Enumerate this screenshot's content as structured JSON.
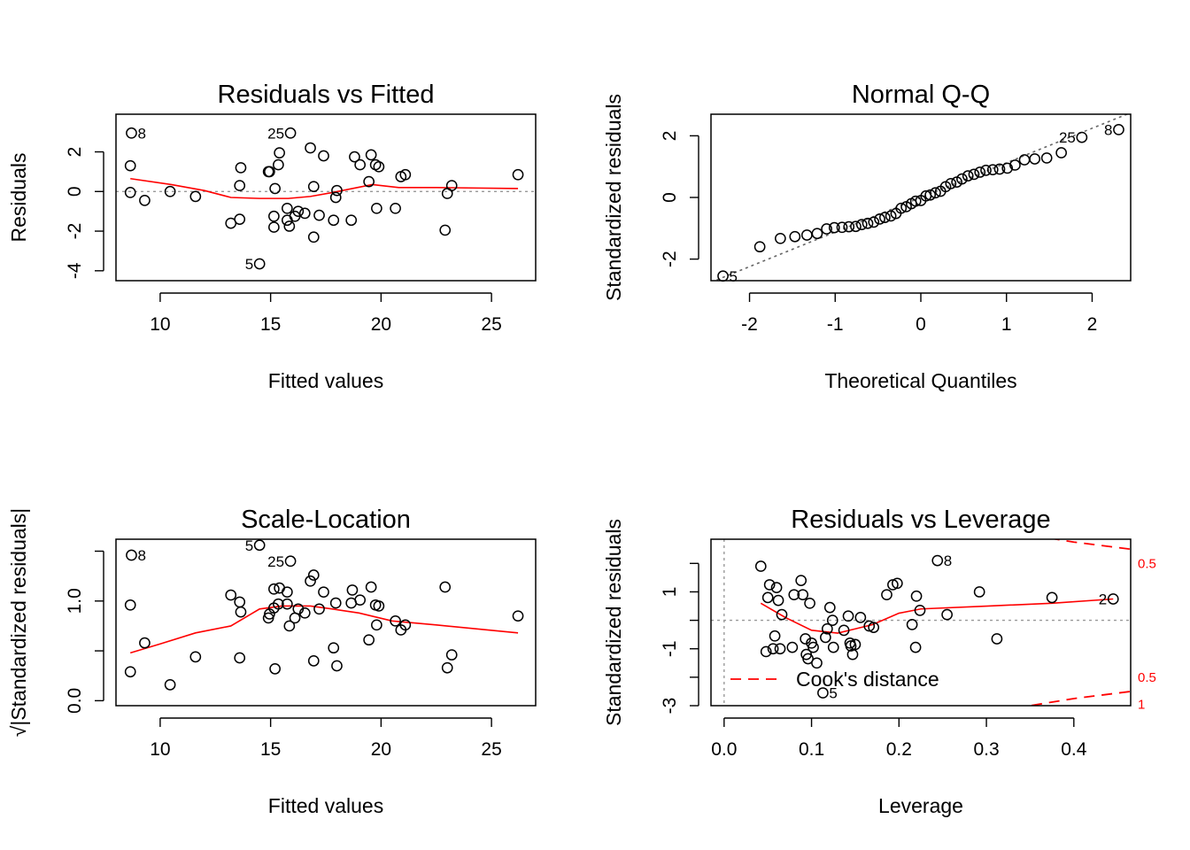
{
  "chart_data": [
    {
      "type": "scatter",
      "title": "Residuals vs Fitted",
      "xlabel": "Fitted values",
      "ylabel": "Residuals",
      "xlim": [
        8,
        27
      ],
      "ylim": [
        -4.5,
        3.9
      ],
      "xticks": [
        10,
        15,
        20,
        25
      ],
      "xtick_labels": [
        "10",
        "15",
        "20",
        "25"
      ],
      "yticks": [
        -4,
        -2,
        0,
        2
      ],
      "ytick_labels": [
        "-4",
        "-2",
        "0",
        "2"
      ],
      "points": [
        [
          8.7,
          2.95
        ],
        [
          8.65,
          1.3
        ],
        [
          8.65,
          -0.05
        ],
        [
          9.3,
          -0.45
        ],
        [
          10.45,
          0.0
        ],
        [
          11.6,
          -0.25
        ],
        [
          13.2,
          -1.6
        ],
        [
          13.6,
          0.3
        ],
        [
          13.65,
          1.2
        ],
        [
          13.6,
          -1.4
        ],
        [
          14.5,
          -3.65
        ],
        [
          14.9,
          1.0
        ],
        [
          14.95,
          1.0
        ],
        [
          15.15,
          -1.25
        ],
        [
          15.15,
          -1.8
        ],
        [
          15.2,
          0.15
        ],
        [
          15.35,
          1.35
        ],
        [
          15.4,
          1.95
        ],
        [
          15.75,
          -1.45
        ],
        [
          15.75,
          -0.85
        ],
        [
          15.85,
          -1.75
        ],
        [
          15.9,
          2.95
        ],
        [
          16.1,
          -1.25
        ],
        [
          16.25,
          -1.0
        ],
        [
          16.55,
          -1.1
        ],
        [
          16.8,
          2.2
        ],
        [
          16.95,
          0.25
        ],
        [
          16.95,
          -2.3
        ],
        [
          17.2,
          -1.2
        ],
        [
          17.4,
          1.8
        ],
        [
          17.85,
          -1.45
        ],
        [
          17.95,
          -0.3
        ],
        [
          18.0,
          0.05
        ],
        [
          18.65,
          -1.45
        ],
        [
          18.8,
          1.75
        ],
        [
          19.05,
          1.35
        ],
        [
          19.45,
          0.5
        ],
        [
          19.55,
          1.85
        ],
        [
          19.75,
          1.35
        ],
        [
          19.9,
          1.25
        ],
        [
          19.8,
          -0.85
        ],
        [
          20.65,
          -0.85
        ],
        [
          20.9,
          0.75
        ],
        [
          21.1,
          0.85
        ],
        [
          22.9,
          -1.95
        ],
        [
          23.0,
          -0.1
        ],
        [
          23.2,
          0.3
        ],
        [
          26.2,
          0.85
        ]
      ],
      "smooth": [
        [
          8.65,
          0.65
        ],
        [
          10.5,
          0.35
        ],
        [
          12.0,
          0.05
        ],
        [
          13.2,
          -0.3
        ],
        [
          14.5,
          -0.35
        ],
        [
          15.8,
          -0.35
        ],
        [
          16.8,
          -0.25
        ],
        [
          17.8,
          -0.05
        ],
        [
          18.7,
          0.15
        ],
        [
          19.6,
          0.35
        ],
        [
          20.8,
          0.2
        ],
        [
          22.5,
          0.2
        ],
        [
          26.2,
          0.15
        ]
      ],
      "labeled": [
        {
          "text": "8",
          "x": 8.7,
          "y": 2.95,
          "side": "right"
        },
        {
          "text": "25",
          "x": 15.9,
          "y": 2.95,
          "side": "left"
        },
        {
          "text": "5",
          "x": 14.5,
          "y": -3.65,
          "side": "left"
        }
      ]
    },
    {
      "type": "scatter",
      "title": "Normal Q-Q",
      "xlabel": "Theoretical Quantiles",
      "ylabel": "Standardized residuals",
      "xlim": [
        -2.45,
        2.45
      ],
      "ylim": [
        -2.7,
        2.7
      ],
      "xticks": [
        -2,
        -1,
        0,
        1,
        2
      ],
      "xtick_labels": [
        "-2",
        "-1",
        "0",
        "1",
        "2"
      ],
      "yticks": [
        -2,
        0,
        2
      ],
      "ytick_labels": [
        "-2",
        "0",
        "2"
      ],
      "points": [
        [
          -2.31,
          -2.55
        ],
        [
          -1.88,
          -1.6
        ],
        [
          -1.64,
          -1.33
        ],
        [
          -1.47,
          -1.27
        ],
        [
          -1.33,
          -1.22
        ],
        [
          -1.21,
          -1.17
        ],
        [
          -1.1,
          -1.02
        ],
        [
          -1.01,
          -0.98
        ],
        [
          -0.92,
          -0.97
        ],
        [
          -0.84,
          -0.95
        ],
        [
          -0.76,
          -0.94
        ],
        [
          -0.69,
          -0.88
        ],
        [
          -0.62,
          -0.84
        ],
        [
          -0.55,
          -0.8
        ],
        [
          -0.48,
          -0.7
        ],
        [
          -0.42,
          -0.65
        ],
        [
          -0.35,
          -0.6
        ],
        [
          -0.29,
          -0.52
        ],
        [
          -0.23,
          -0.35
        ],
        [
          -0.17,
          -0.3
        ],
        [
          -0.11,
          -0.2
        ],
        [
          -0.06,
          -0.12
        ],
        [
          0.0,
          -0.1
        ],
        [
          0.06,
          0.05
        ],
        [
          0.11,
          0.08
        ],
        [
          0.17,
          0.15
        ],
        [
          0.23,
          0.2
        ],
        [
          0.29,
          0.35
        ],
        [
          0.35,
          0.45
        ],
        [
          0.42,
          0.5
        ],
        [
          0.48,
          0.6
        ],
        [
          0.55,
          0.7
        ],
        [
          0.62,
          0.75
        ],
        [
          0.69,
          0.82
        ],
        [
          0.76,
          0.88
        ],
        [
          0.84,
          0.9
        ],
        [
          0.92,
          0.92
        ],
        [
          1.01,
          0.95
        ],
        [
          1.1,
          1.05
        ],
        [
          1.21,
          1.22
        ],
        [
          1.33,
          1.25
        ],
        [
          1.47,
          1.28
        ],
        [
          1.64,
          1.45
        ],
        [
          1.88,
          1.95
        ],
        [
          2.31,
          2.2
        ]
      ],
      "refline": [
        [
          -2.45,
          -2.75
        ],
        [
          2.45,
          2.75
        ]
      ],
      "labeled": [
        {
          "text": "5",
          "x": -2.31,
          "y": -2.55,
          "side": "right"
        },
        {
          "text": "25",
          "x": 1.88,
          "y": 1.95,
          "side": "left"
        },
        {
          "text": "8",
          "x": 2.31,
          "y": 2.2,
          "side": "left"
        }
      ]
    },
    {
      "type": "scatter",
      "title": "Scale-Location",
      "xlabel": "Fitted values",
      "ylabel": "√|Standardized residuals|",
      "xlim": [
        8,
        27
      ],
      "ylim": [
        -0.05,
        1.62
      ],
      "xticks": [
        10,
        15,
        20,
        25
      ],
      "xtick_labels": [
        "10",
        "15",
        "20",
        "25"
      ],
      "yticks": [
        0.0,
        1.0
      ],
      "ytick_labels": [
        "0.0",
        "1.0"
      ],
      "minor_yticks": [
        0.5,
        1.5
      ],
      "points": [
        [
          8.7,
          1.46
        ],
        [
          8.65,
          0.96
        ],
        [
          8.65,
          0.29
        ],
        [
          9.3,
          0.58
        ],
        [
          10.45,
          0.16
        ],
        [
          11.6,
          0.44
        ],
        [
          13.2,
          1.06
        ],
        [
          13.6,
          0.99
        ],
        [
          13.65,
          0.89
        ],
        [
          13.6,
          0.43
        ],
        [
          14.5,
          1.56
        ],
        [
          14.9,
          0.83
        ],
        [
          14.95,
          0.87
        ],
        [
          15.15,
          1.12
        ],
        [
          15.15,
          0.93
        ],
        [
          15.2,
          0.32
        ],
        [
          15.35,
          0.97
        ],
        [
          15.4,
          1.13
        ],
        [
          15.75,
          1.09
        ],
        [
          15.75,
          0.97
        ],
        [
          15.85,
          0.75
        ],
        [
          15.9,
          1.4
        ],
        [
          16.1,
          0.83
        ],
        [
          16.25,
          0.92
        ],
        [
          16.55,
          0.88
        ],
        [
          16.8,
          1.2
        ],
        [
          16.95,
          0.4
        ],
        [
          16.95,
          1.26
        ],
        [
          17.2,
          0.92
        ],
        [
          17.4,
          1.09
        ],
        [
          17.85,
          0.53
        ],
        [
          17.95,
          0.98
        ],
        [
          18.0,
          0.35
        ],
        [
          18.65,
          0.98
        ],
        [
          18.7,
          1.11
        ],
        [
          19.05,
          1.01
        ],
        [
          19.45,
          0.61
        ],
        [
          19.55,
          1.14
        ],
        [
          19.75,
          0.96
        ],
        [
          19.9,
          0.95
        ],
        [
          19.8,
          0.76
        ],
        [
          20.65,
          0.8
        ],
        [
          20.9,
          0.71
        ],
        [
          21.1,
          0.76
        ],
        [
          22.9,
          1.14
        ],
        [
          23.0,
          0.33
        ],
        [
          23.2,
          0.46
        ],
        [
          26.2,
          0.85
        ]
      ],
      "smooth": [
        [
          8.65,
          0.48
        ],
        [
          10.0,
          0.57
        ],
        [
          11.6,
          0.68
        ],
        [
          13.2,
          0.75
        ],
        [
          14.5,
          0.92
        ],
        [
          15.5,
          0.95
        ],
        [
          16.8,
          0.95
        ],
        [
          17.8,
          0.92
        ],
        [
          19.0,
          0.88
        ],
        [
          20.5,
          0.8
        ],
        [
          22.5,
          0.76
        ],
        [
          26.2,
          0.68
        ]
      ],
      "labeled": [
        {
          "text": "8",
          "x": 8.7,
          "y": 1.46,
          "side": "right"
        },
        {
          "text": "5",
          "x": 14.5,
          "y": 1.56,
          "side": "left"
        },
        {
          "text": "25",
          "x": 15.9,
          "y": 1.4,
          "side": "left"
        }
      ]
    },
    {
      "type": "scatter",
      "title": "Residuals vs Leverage",
      "xlabel": "Leverage",
      "ylabel": "Standardized residuals",
      "xlim": [
        -0.015,
        0.465
      ],
      "ylim": [
        -3.0,
        2.85
      ],
      "xticks": [
        0.0,
        0.1,
        0.2,
        0.3,
        0.4
      ],
      "xtick_labels": [
        "0.0",
        "0.1",
        "0.2",
        "0.3",
        "0.4"
      ],
      "yticks": [
        -3,
        -1,
        1
      ],
      "ytick_labels": [
        "-3",
        "-1",
        "1"
      ],
      "minor_yticks": [
        -2,
        0,
        2
      ],
      "points": [
        [
          0.042,
          1.9
        ],
        [
          0.048,
          -1.1
        ],
        [
          0.05,
          0.8
        ],
        [
          0.052,
          1.25
        ],
        [
          0.056,
          -1.0
        ],
        [
          0.058,
          -0.55
        ],
        [
          0.06,
          1.15
        ],
        [
          0.062,
          0.7
        ],
        [
          0.064,
          -1.0
        ],
        [
          0.066,
          0.2
        ],
        [
          0.078,
          -0.95
        ],
        [
          0.08,
          0.9
        ],
        [
          0.088,
          1.4
        ],
        [
          0.09,
          0.9
        ],
        [
          0.093,
          -0.65
        ],
        [
          0.094,
          -1.2
        ],
        [
          0.096,
          -1.35
        ],
        [
          0.098,
          0.6
        ],
        [
          0.1,
          -0.8
        ],
        [
          0.102,
          -0.95
        ],
        [
          0.106,
          -1.5
        ],
        [
          0.113,
          -2.55
        ],
        [
          0.116,
          -0.6
        ],
        [
          0.118,
          -0.3
        ],
        [
          0.121,
          0.45
        ],
        [
          0.124,
          0.0
        ],
        [
          0.125,
          -0.95
        ],
        [
          0.137,
          -0.35
        ],
        [
          0.142,
          0.15
        ],
        [
          0.144,
          -0.8
        ],
        [
          0.145,
          -0.9
        ],
        [
          0.147,
          -1.2
        ],
        [
          0.15,
          -0.85
        ],
        [
          0.156,
          0.1
        ],
        [
          0.166,
          -0.2
        ],
        [
          0.171,
          -0.25
        ],
        [
          0.186,
          0.9
        ],
        [
          0.193,
          1.25
        ],
        [
          0.198,
          1.3
        ],
        [
          0.215,
          -0.15
        ],
        [
          0.219,
          -0.95
        ],
        [
          0.22,
          0.85
        ],
        [
          0.224,
          0.35
        ],
        [
          0.244,
          2.1
        ],
        [
          0.255,
          0.2
        ],
        [
          0.292,
          1.0
        ],
        [
          0.312,
          -0.65
        ],
        [
          0.375,
          0.8
        ],
        [
          0.445,
          0.75
        ]
      ],
      "smooth": [
        [
          0.042,
          0.6
        ],
        [
          0.07,
          0.1
        ],
        [
          0.1,
          -0.35
        ],
        [
          0.13,
          -0.45
        ],
        [
          0.15,
          -0.3
        ],
        [
          0.17,
          -0.15
        ],
        [
          0.2,
          0.25
        ],
        [
          0.225,
          0.4
        ],
        [
          0.3,
          0.5
        ],
        [
          0.375,
          0.6
        ],
        [
          0.445,
          0.75
        ]
      ],
      "cooks_curves": [
        {
          "label": "0.5",
          "points": [
            [
              0.255,
              3.9
            ],
            [
              0.33,
              3.1
            ],
            [
              0.4,
              2.75
            ],
            [
              0.465,
              2.5
            ]
          ]
        },
        {
          "label": "0.5",
          "points": [
            [
              0.255,
              -3.9
            ],
            [
              0.33,
              -3.1
            ],
            [
              0.4,
              -2.75
            ],
            [
              0.465,
              -2.5
            ]
          ]
        },
        {
          "label": "1",
          "points": [
            [
              0.38,
              -4.1
            ],
            [
              0.43,
              -3.6
            ],
            [
              0.465,
              -3.3
            ]
          ]
        }
      ],
      "cooks_labels": [
        {
          "text": "0.5",
          "y": 2.0
        },
        {
          "text": "0.5",
          "y": -2.0
        },
        {
          "text": "1",
          "y": -2.95
        }
      ],
      "labeled": [
        {
          "text": "8",
          "x": 0.244,
          "y": 2.1,
          "side": "right"
        },
        {
          "text": "5",
          "x": 0.113,
          "y": -2.55,
          "side": "right"
        },
        {
          "text": "2",
          "x": 0.445,
          "y": 0.75,
          "side": "left"
        }
      ],
      "legend": {
        "text": "Cook's distance",
        "position": "bottom-left"
      }
    }
  ]
}
